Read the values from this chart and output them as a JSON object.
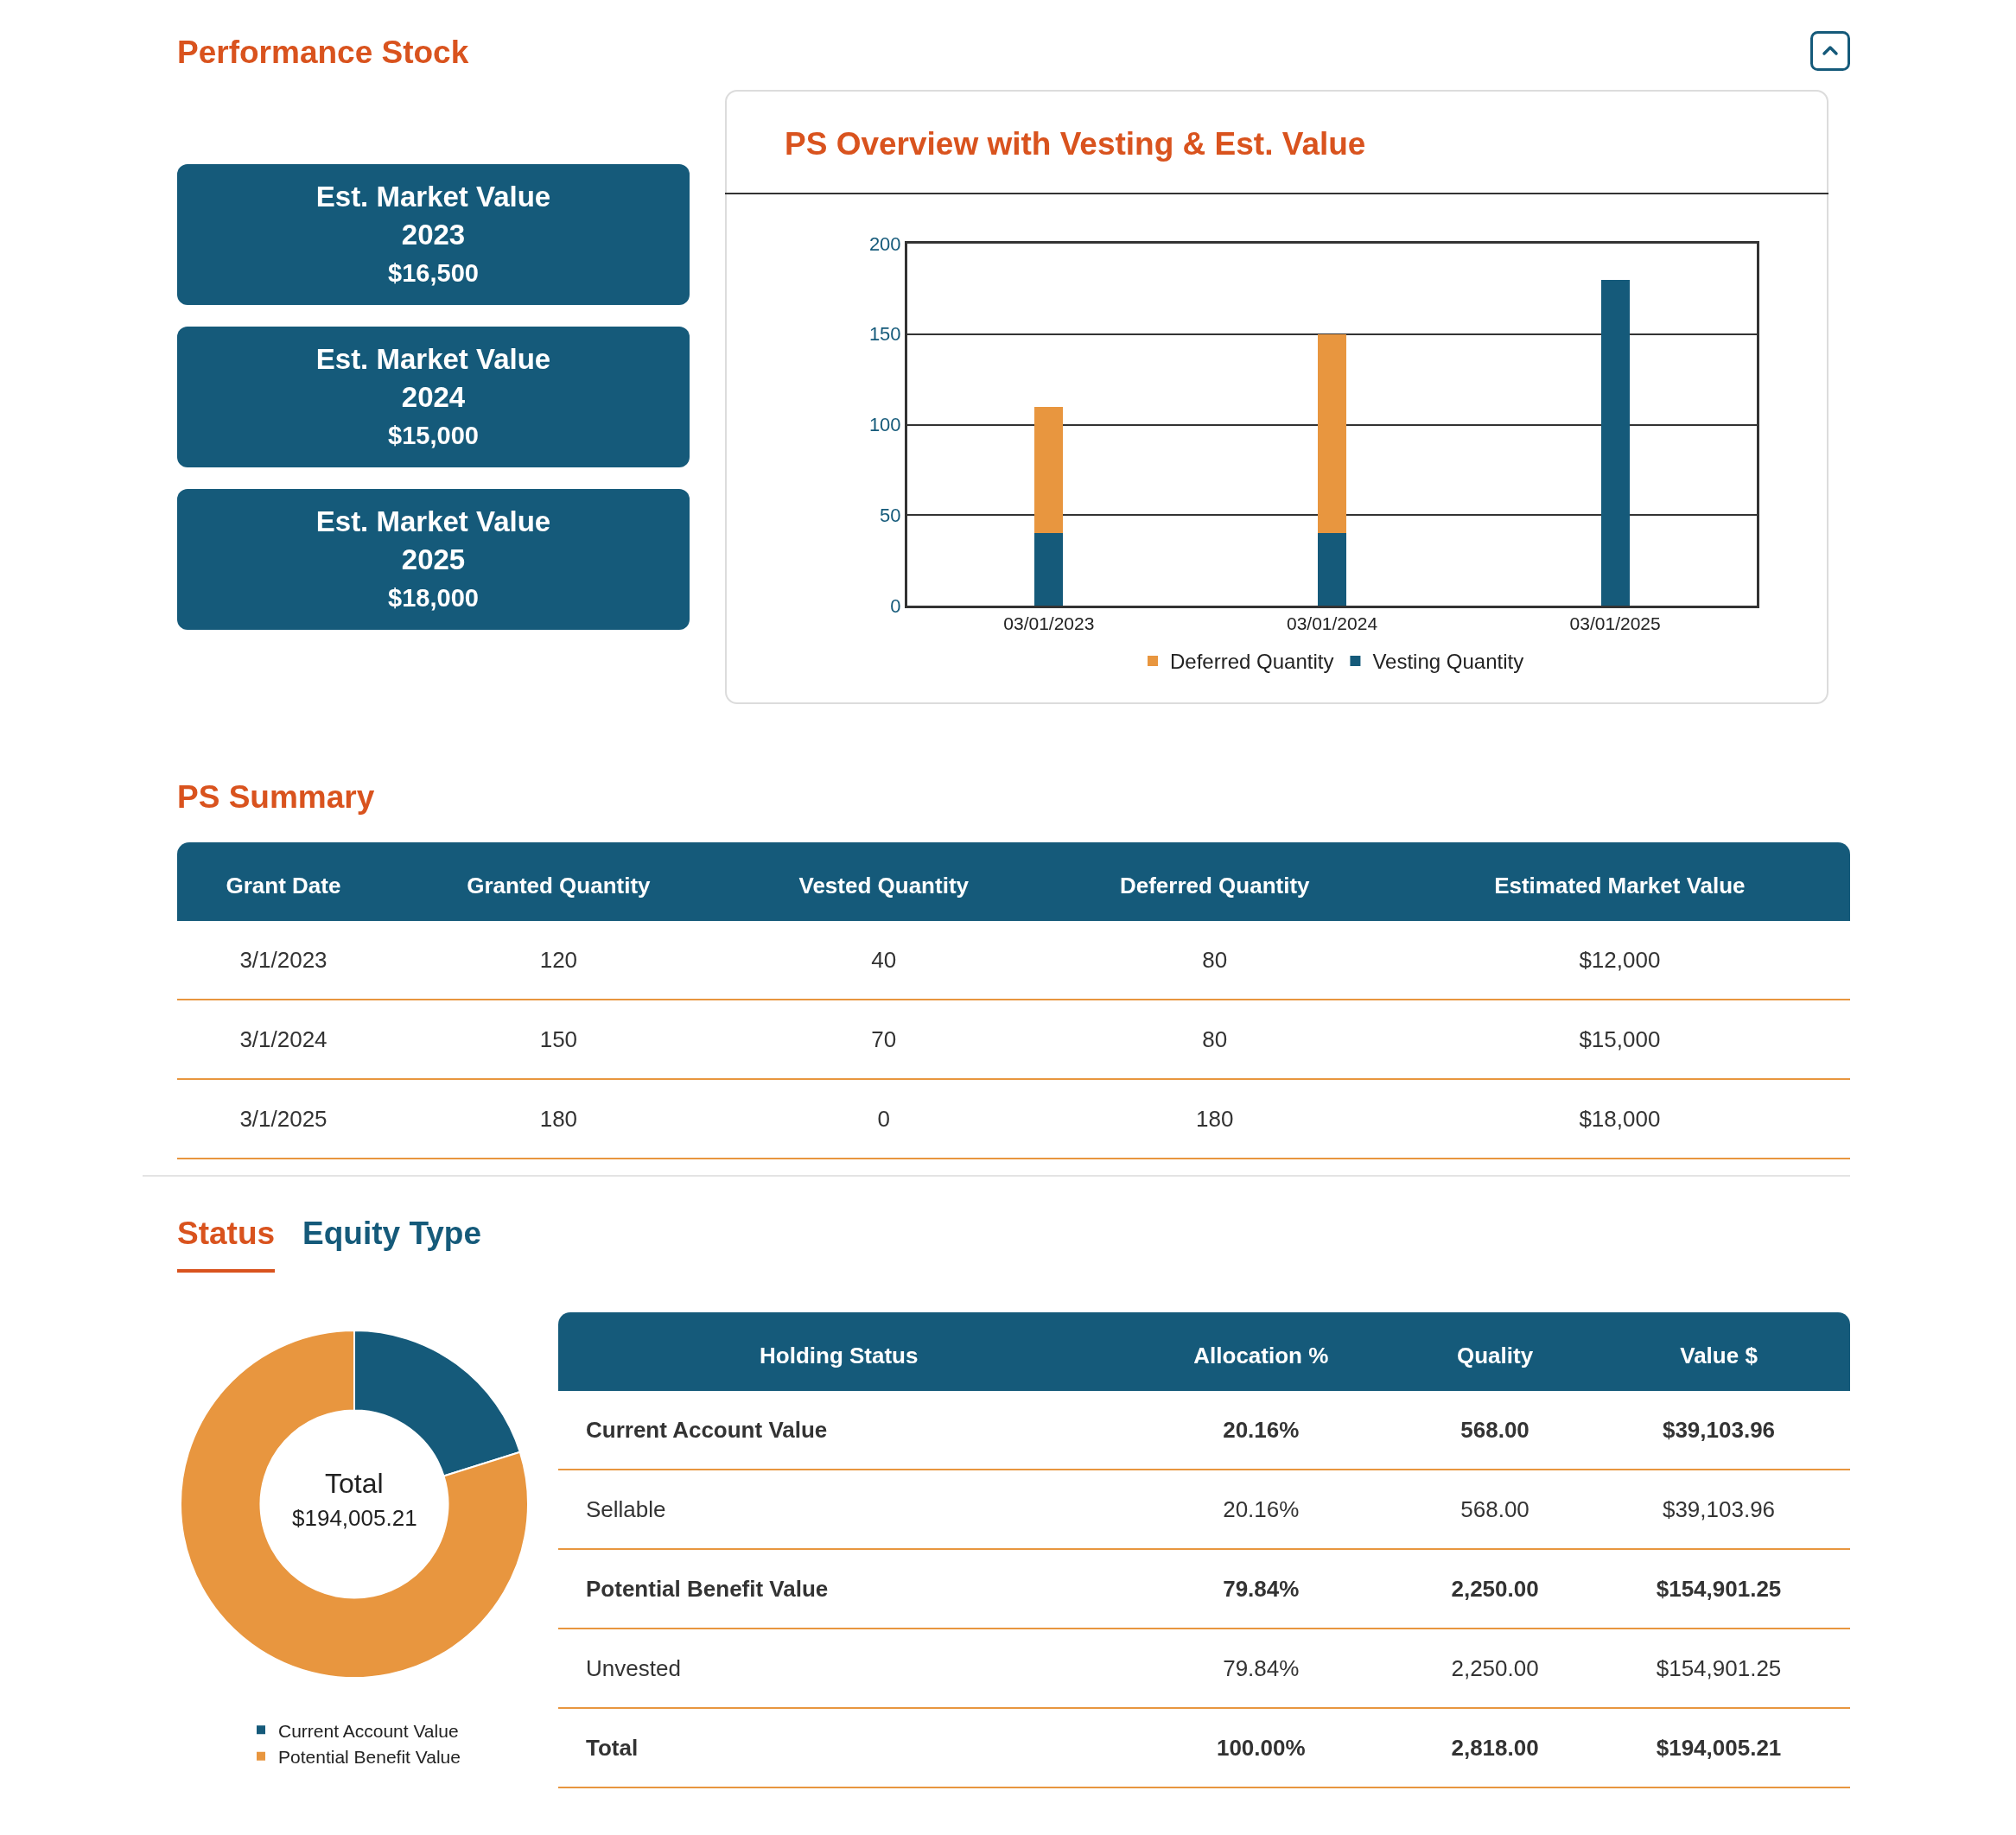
{
  "chart_data": [
    {
      "type": "other",
      "title": "Performance Stock",
      "annotations": [
        "Est. Market Value",
        "2023",
        "$16,500",
        "Est. Market Value",
        "2024",
        "$15,000",
        "Est. Market Value",
        "2025",
        "$18,000"
      ]
    },
    {
      "type": "bar",
      "title": "PS Overview with Vesting & Est. Value",
      "categories": [
        "03/01/2023",
        "03/01/2024",
        "03/01/2025"
      ],
      "stacked": true,
      "series": [
        {
          "name": "Vesting Quantity",
          "color": "#155a7a",
          "values": [
            40,
            40,
            180
          ]
        },
        {
          "name": "Deferred Quantity",
          "color": "#e8963f",
          "values": [
            70,
            110,
            0
          ]
        }
      ],
      "ylim": [
        0,
        200
      ],
      "yticks": [
        0,
        50,
        100,
        150,
        200
      ],
      "grid": "y",
      "legend": "bottom"
    },
    {
      "type": "other",
      "title": "PS Summary",
      "categories": [
        "Grant Date",
        "Granted Quantity",
        "Vested Quantity",
        "Deferred Quantity",
        "Estimated Market Value"
      ],
      "annotations": [
        "3/1/2023",
        "120",
        "40",
        "80",
        "$12,000",
        "3/1/2024",
        "150",
        "70",
        "80",
        "$15,000",
        "3/1/2025",
        "180",
        "0",
        "180",
        "$18,000"
      ]
    },
    {
      "type": "other",
      "title": "Status",
      "subtitle": "Equity Type",
      "categories": [
        "Holding Status",
        "Allocation %",
        "Quality",
        "Value $"
      ],
      "annotations": [
        "Current Account Value",
        "20.16%",
        "568.00",
        "$39,103.96",
        "Sellable",
        "20.16%",
        "568.00",
        "$39,103.96",
        "Potential Benefit Value",
        "79.84%",
        "2,250.00",
        "$154,901.25",
        "Unvested",
        "79.84%",
        "2,250.00",
        "$154,901.25",
        "Total",
        "100.00%",
        "2,818.00",
        "$194,005.21"
      ]
    },
    {
      "type": "donut",
      "categories": [
        "Current Account Value",
        "Potential Benefit Value"
      ],
      "values": [
        20.16,
        79.84
      ],
      "colors": [
        "#155a7a",
        "#e8963f"
      ],
      "annotations": [
        "Total",
        "$194,005.21"
      ],
      "legend": "bottom"
    }
  ]
}
